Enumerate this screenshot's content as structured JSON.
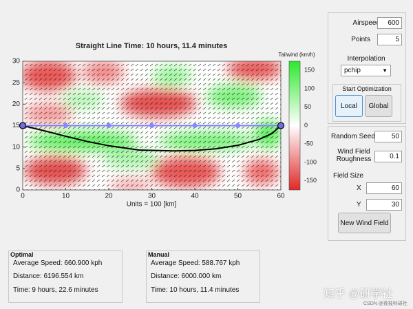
{
  "plot": {
    "title": "Straight Line Time: 10 hours, 11.4 minutes",
    "xlabel": "Units = 100 [km]",
    "xlim": [
      0,
      60
    ],
    "ylim": [
      0,
      30
    ],
    "xticks": [
      0,
      10,
      20,
      30,
      40,
      50,
      60
    ],
    "yticks": [
      0,
      5,
      10,
      15,
      20,
      25,
      30
    ],
    "colorbar": {
      "label": "Tailwind (km/h)",
      "lim": [
        -175,
        175
      ],
      "ticks": [
        -150,
        -100,
        -50,
        0,
        50,
        100,
        150
      ]
    },
    "manual_path": {
      "x": [
        0,
        10,
        20,
        30,
        40,
        50,
        60
      ],
      "y": [
        15,
        15,
        15,
        15,
        15,
        15,
        15
      ]
    },
    "optimal_path": {
      "x": [
        0,
        5,
        10,
        15,
        20,
        27,
        35,
        40,
        45,
        50,
        55,
        58,
        60
      ],
      "y": [
        15,
        13.8,
        12.5,
        11.3,
        10.3,
        9.3,
        9.1,
        9.2,
        9.6,
        10.4,
        11.8,
        13.2,
        15
      ]
    }
  },
  "controls": {
    "airspeed": {
      "label": "Airspeed",
      "value": 600
    },
    "points": {
      "label": "Points",
      "value": 5
    },
    "interpolation": {
      "label": "Interpolation",
      "value": "pchip"
    },
    "optimization": {
      "title": "Start Optimization",
      "local": "Local",
      "global": "Global"
    },
    "random_seed": {
      "label": "Random Seed",
      "value": 50
    },
    "roughness": {
      "label": [
        "Wind Field",
        "Roughness"
      ],
      "value": 0.1
    },
    "field_size": {
      "label": "Field Size",
      "x_label": "X",
      "x": 60,
      "y_label": "Y",
      "y": 30
    },
    "new_field": "New Wind Field"
  },
  "results": {
    "optimal": {
      "title": "Optimal",
      "lines": [
        "Average Speed: 660.900 kph",
        "Distance: 6196.554 km",
        "Time: 9 hours, 22.6 minutes"
      ]
    },
    "manual": {
      "title": "Manual",
      "lines": [
        "Average Speed: 588.767 kph",
        "Distance: 6000.000 km",
        "Time: 10 hours, 11.4 minutes"
      ]
    }
  },
  "watermark": [
    "知乎 @研学社",
    "CSDN @荔枝科研社"
  ]
}
